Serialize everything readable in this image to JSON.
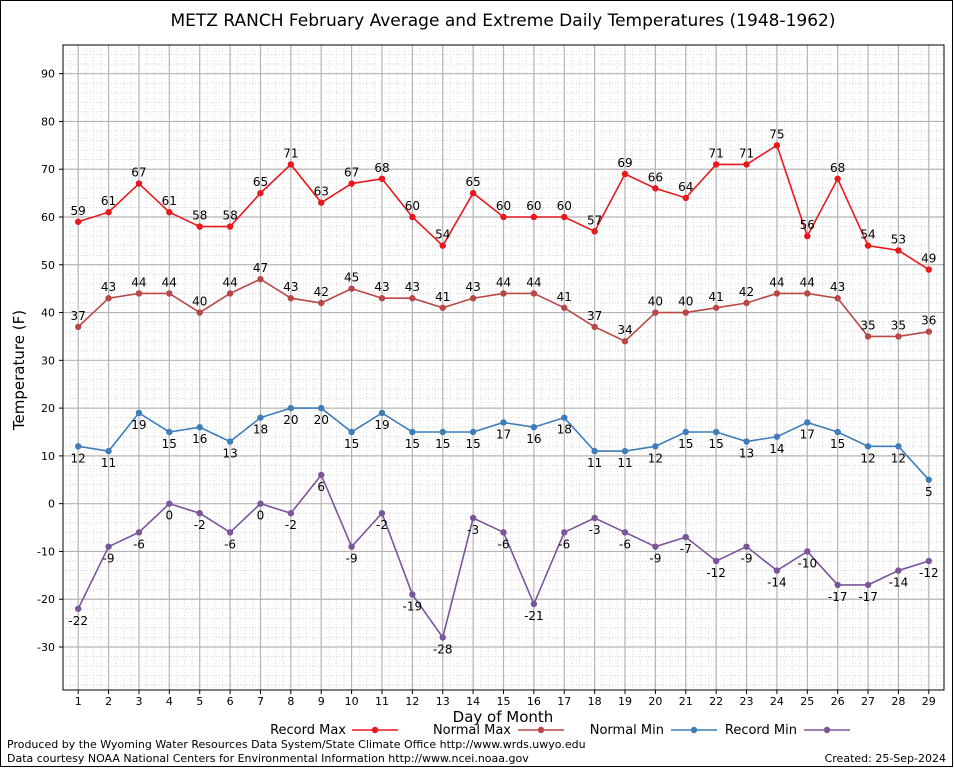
{
  "chart_data": {
    "type": "line",
    "title": "METZ RANCH February Average and Extreme Daily Temperatures (1948-1962)",
    "xlabel": "Day of Month",
    "ylabel": "Temperature (F)",
    "x": [
      1,
      2,
      3,
      4,
      5,
      6,
      7,
      8,
      9,
      10,
      11,
      12,
      13,
      14,
      15,
      16,
      17,
      18,
      19,
      20,
      21,
      22,
      23,
      24,
      25,
      26,
      27,
      28,
      29
    ],
    "xlim": [
      0.5,
      29.5
    ],
    "ylim": [
      -39,
      96
    ],
    "yticks": [
      -30,
      -20,
      -10,
      0,
      10,
      20,
      30,
      40,
      50,
      60,
      70,
      80,
      90
    ],
    "grid": true,
    "legend_position": "bottom",
    "series": [
      {
        "name": "Record Max",
        "color": "#e8191e",
        "label_position": "above",
        "values": [
          59,
          61,
          67,
          61,
          58,
          58,
          65,
          71,
          63,
          67,
          68,
          60,
          54,
          65,
          60,
          60,
          60,
          57,
          69,
          66,
          64,
          71,
          71,
          75,
          56,
          68,
          54,
          53,
          49
        ]
      },
      {
        "name": "Normal Max",
        "color": "#b84848",
        "label_position": "above",
        "values": [
          37,
          43,
          44,
          44,
          40,
          44,
          47,
          43,
          42,
          45,
          43,
          43,
          41,
          43,
          44,
          44,
          41,
          37,
          34,
          40,
          40,
          41,
          42,
          44,
          44,
          43,
          35,
          35,
          36
        ]
      },
      {
        "name": "Normal Min",
        "color": "#3f7db8",
        "label_position": "below",
        "values": [
          12,
          11,
          19,
          15,
          16,
          13,
          18,
          20,
          20,
          15,
          19,
          15,
          15,
          15,
          17,
          16,
          18,
          11,
          11,
          12,
          15,
          15,
          13,
          14,
          17,
          15,
          12,
          12,
          5
        ]
      },
      {
        "name": "Record Min",
        "color": "#7b559b",
        "label_position": "below",
        "values": [
          -22,
          -9,
          -6,
          0,
          -2,
          -6,
          0,
          -2,
          6,
          -9,
          -2,
          -19,
          -28,
          -3,
          -6,
          -21,
          -6,
          -3,
          -6,
          -9,
          -7,
          -12,
          -9,
          -14,
          -10,
          -17,
          -17,
          -14,
          -12
        ]
      }
    ]
  },
  "footer": {
    "produced_by": "Produced by the Wyoming Water Resources Data System/State Climate Office http://www.wrds.uwyo.edu",
    "courtesy": "Data courtesy NOAA National Centers for Environmental Information http://www.ncei.noaa.gov",
    "created": "Created: 25-Sep-2024"
  }
}
